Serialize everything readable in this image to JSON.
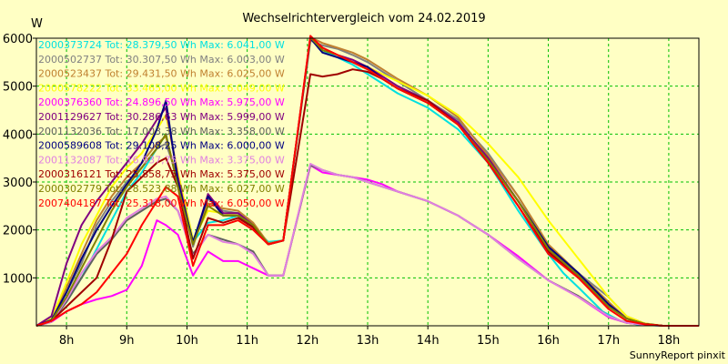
{
  "chart_data": {
    "type": "line",
    "title": "Wechselrichtervergleich vom 24.02.2019",
    "ylabel": "W",
    "xlabel": "",
    "footer": "SunnyReport pinxit",
    "xlim": [
      7.5,
      18.5
    ],
    "ylim": [
      0,
      6000
    ],
    "xticks": [
      8,
      9,
      10,
      11,
      12,
      13,
      14,
      15,
      16,
      17,
      18
    ],
    "xtick_labels": [
      "8h",
      "9h",
      "10h",
      "11h",
      "12h",
      "13h",
      "14h",
      "15h",
      "16h",
      "17h",
      "18h"
    ],
    "yticks": [
      1000,
      2000,
      3000,
      4000,
      5000,
      6000
    ],
    "ytick_labels": [
      "1000",
      "2000",
      "3000",
      "4000",
      "5000",
      "6000"
    ],
    "grid": true,
    "legend_position": "top-left",
    "series": [
      {
        "name": "2000373724",
        "legend": "2000373724 Tot: 28.379,50 Wh Max: 6.041,00 W",
        "color": "#00e0e0",
        "x": [
          7.5,
          7.75,
          8,
          8.25,
          8.5,
          8.75,
          9,
          9.25,
          9.5,
          9.65,
          9.85,
          10.1,
          10.35,
          10.6,
          10.85,
          11.1,
          11.35,
          11.6,
          12.05,
          12.25,
          12.5,
          12.75,
          13,
          13.25,
          13.5,
          14,
          14.5,
          15,
          15.5,
          16,
          16.25,
          16.5,
          16.9,
          17.2,
          17.5,
          17.9,
          18.5
        ],
        "y": [
          0,
          100,
          500,
          1000,
          1600,
          2200,
          2800,
          3200,
          3700,
          4000,
          2900,
          1750,
          2150,
          2200,
          2300,
          2050,
          1750,
          1780,
          5980,
          5750,
          5600,
          5450,
          5250,
          5050,
          4850,
          4550,
          4100,
          3400,
          2400,
          1500,
          1100,
          800,
          300,
          100,
          20,
          0,
          0
        ]
      },
      {
        "name": "2000502737",
        "legend": "2000502737 Tot: 30.307,50 Wh Max: 6.003,00 W",
        "color": "#808080",
        "x": [
          7.5,
          7.75,
          8,
          8.25,
          8.5,
          8.75,
          9,
          9.25,
          9.5,
          9.65,
          9.85,
          10.1,
          10.35,
          10.6,
          10.85,
          11.1,
          11.35,
          11.6,
          12.05,
          12.25,
          12.5,
          12.75,
          13,
          13.25,
          13.5,
          14,
          14.5,
          15,
          15.5,
          16,
          16.5,
          17,
          17.3,
          17.6,
          17.9,
          18.5
        ],
        "y": [
          0,
          100,
          700,
          1300,
          2100,
          2600,
          3000,
          3300,
          3700,
          3800,
          3100,
          1650,
          2650,
          2400,
          2350,
          2100,
          1700,
          1780,
          5950,
          5850,
          5780,
          5650,
          5500,
          5300,
          5100,
          4700,
          4300,
          3600,
          2700,
          1650,
          1100,
          600,
          200,
          50,
          0,
          0
        ]
      },
      {
        "name": "2000523437",
        "legend": "2000523437 Tot: 29.431,50 Wh Max: 6.025,00 W",
        "color": "#c08030",
        "x": [
          7.5,
          7.75,
          8,
          8.25,
          8.5,
          8.75,
          9,
          9.25,
          9.5,
          9.65,
          9.85,
          10.1,
          10.35,
          10.6,
          10.85,
          11.1,
          11.35,
          11.6,
          12.05,
          12.25,
          12.5,
          12.75,
          13,
          13.25,
          13.5,
          14,
          14.5,
          15,
          15.5,
          16,
          16.5,
          17,
          17.3,
          17.6,
          17.9,
          18.5
        ],
        "y": [
          0,
          120,
          800,
          1500,
          2200,
          2700,
          3100,
          3400,
          3800,
          3950,
          3000,
          1700,
          2550,
          2450,
          2400,
          2150,
          1720,
          1780,
          6020,
          5900,
          5800,
          5700,
          5550,
          5350,
          5150,
          4800,
          4350,
          3550,
          2700,
          1700,
          1100,
          500,
          150,
          30,
          0,
          0
        ]
      },
      {
        "name": "2000578222",
        "legend": "2000578222 Tot: 33.465,00 Wh Max: 6.049,00 W",
        "color": "#ffff00",
        "x": [
          7.5,
          7.75,
          8,
          8.25,
          8.5,
          8.75,
          9,
          9.25,
          9.5,
          9.65,
          9.85,
          10.1,
          10.35,
          10.6,
          10.85,
          11.1,
          11.35,
          11.6,
          12.05,
          12.25,
          12.5,
          12.75,
          13,
          13.25,
          13.5,
          14,
          14.5,
          15,
          15.5,
          16,
          16.5,
          17,
          17.3,
          17.6,
          17.9,
          18.5
        ],
        "y": [
          0,
          150,
          900,
          1700,
          2300,
          2900,
          3300,
          3600,
          4100,
          4400,
          3200,
          1800,
          2400,
          2350,
          2300,
          2100,
          1700,
          1780,
          6000,
          5800,
          5650,
          5500,
          5400,
          5250,
          5100,
          4800,
          4400,
          3800,
          3100,
          2200,
          1400,
          600,
          200,
          50,
          0,
          0
        ]
      },
      {
        "name": "2000376360",
        "legend": "2000376360 Tot: 24.896,50 Wh Max: 5.975,00 W",
        "color": "#ff00ff",
        "x": [
          7.5,
          7.75,
          8,
          8.25,
          8.5,
          8.75,
          9,
          9.25,
          9.5,
          9.65,
          9.85,
          10.1,
          10.35,
          10.6,
          10.85,
          11.1,
          11.35,
          11.6,
          12.05,
          12.25,
          12.5,
          12.75,
          13,
          13.25,
          13.5,
          14,
          14.5,
          15,
          15.5,
          16,
          16.5,
          17,
          17.3,
          17.6,
          17.9,
          18.5
        ],
        "y": [
          0,
          80,
          300,
          450,
          550,
          620,
          750,
          1250,
          2200,
          2100,
          1900,
          1050,
          1550,
          1350,
          1350,
          1200,
          1050,
          1050,
          3350,
          3200,
          3150,
          3100,
          3050,
          2950,
          2800,
          2600,
          2300,
          1900,
          1450,
          950,
          600,
          180,
          60,
          20,
          0,
          0
        ]
      },
      {
        "name": "2001129627",
        "legend": "2001129627 Tot: 30.286,63 Wh Max: 5.999,00 W",
        "color": "#800080",
        "x": [
          7.5,
          7.75,
          8,
          8.25,
          8.5,
          8.75,
          9,
          9.25,
          9.5,
          9.65,
          9.85,
          10.1,
          10.35,
          10.6,
          10.85,
          11.1,
          11.35,
          11.6,
          12.05,
          12.25,
          12.5,
          12.75,
          13,
          13.25,
          13.5,
          14,
          14.5,
          15,
          15.5,
          16,
          16.5,
          17,
          17.3,
          17.6,
          17.9,
          18.5
        ],
        "y": [
          0,
          200,
          1300,
          2100,
          2600,
          3000,
          3400,
          3800,
          4300,
          4550,
          3100,
          1700,
          2750,
          2350,
          2350,
          2100,
          1700,
          1780,
          6000,
          5800,
          5650,
          5550,
          5400,
          5200,
          5000,
          4700,
          4250,
          3500,
          2600,
          1600,
          1050,
          450,
          150,
          40,
          0,
          0
        ]
      },
      {
        "name": "2001132036",
        "legend": "2001132036 Tot: 17.003,38 Wh Max: 3.358,00 W",
        "color": "#606060",
        "x": [
          7.5,
          7.75,
          8,
          8.25,
          8.5,
          8.75,
          9,
          9.25,
          9.5,
          9.65,
          9.85,
          10.1,
          10.35,
          10.6,
          10.85,
          11.1,
          11.35,
          11.6,
          12.05,
          12.25,
          12.5,
          12.75,
          13,
          13.25,
          13.5,
          14,
          14.5,
          15,
          15.5,
          16,
          16.5,
          17,
          17.3,
          17.6,
          17.9,
          18.5
        ],
        "y": [
          0,
          80,
          500,
          1000,
          1500,
          1800,
          2200,
          2400,
          2600,
          2650,
          2400,
          1500,
          1900,
          1800,
          1700,
          1550,
          1050,
          1050,
          3350,
          3250,
          3150,
          3100,
          3000,
          2900,
          2800,
          2600,
          2300,
          1900,
          1400,
          950,
          620,
          200,
          60,
          20,
          0,
          0
        ]
      },
      {
        "name": "2000589608",
        "legend": "2000589608 Tot: 29.108,25 Wh Max: 6.000,00 W",
        "color": "#000080",
        "x": [
          7.5,
          7.75,
          8,
          8.25,
          8.5,
          8.75,
          9,
          9.25,
          9.5,
          9.65,
          9.85,
          10.1,
          10.35,
          10.6,
          10.85,
          11.1,
          11.35,
          11.6,
          12.05,
          12.25,
          12.5,
          12.75,
          13,
          13.25,
          13.5,
          14,
          14.5,
          15,
          15.5,
          16,
          16.5,
          17,
          17.3,
          17.6,
          17.9,
          18.5
        ],
        "y": [
          0,
          120,
          700,
          1400,
          2000,
          2500,
          2950,
          3400,
          4100,
          4700,
          3000,
          1750,
          2700,
          2300,
          2300,
          2050,
          1700,
          1780,
          6000,
          5700,
          5600,
          5500,
          5400,
          5150,
          4950,
          4650,
          4200,
          3450,
          2600,
          1650,
          1100,
          450,
          150,
          40,
          0,
          0
        ]
      },
      {
        "name": "2001132087",
        "legend": "2001132087 Tot: 16.937,75 Wh Max: 3.375,00 W",
        "color": "#e080e0",
        "x": [
          7.5,
          7.75,
          8,
          8.25,
          8.5,
          8.75,
          9,
          9.25,
          9.5,
          9.65,
          9.85,
          10.1,
          10.35,
          10.6,
          10.85,
          11.1,
          11.35,
          11.6,
          12.05,
          12.25,
          12.5,
          12.75,
          13,
          13.25,
          13.5,
          14,
          14.5,
          15,
          15.5,
          16,
          16.5,
          17,
          17.3,
          17.6,
          17.9,
          18.5
        ],
        "y": [
          0,
          80,
          550,
          1100,
          1550,
          1850,
          2250,
          2450,
          2650,
          2700,
          2400,
          1450,
          1900,
          1750,
          1700,
          1500,
          1050,
          1050,
          3380,
          3250,
          3150,
          3100,
          3000,
          2900,
          2800,
          2600,
          2300,
          1900,
          1400,
          950,
          600,
          200,
          60,
          20,
          0,
          0
        ]
      },
      {
        "name": "2000316121",
        "legend": "2000316121 Tot: 25.858,75 Wh Max: 5.375,00 W",
        "color": "#a00000",
        "x": [
          7.5,
          7.75,
          8,
          8.25,
          8.5,
          8.75,
          9,
          9.25,
          9.5,
          9.65,
          9.85,
          10.1,
          10.35,
          10.6,
          10.85,
          11.1,
          11.35,
          11.6,
          12.05,
          12.25,
          12.5,
          12.75,
          13,
          13.25,
          13.5,
          14,
          14.5,
          15,
          15.5,
          16,
          16.5,
          17,
          17.3,
          17.6,
          17.9,
          18.5
        ],
        "y": [
          0,
          100,
          400,
          700,
          1000,
          1800,
          2800,
          3100,
          3400,
          3500,
          2900,
          1400,
          2250,
          2150,
          2250,
          2050,
          1700,
          1780,
          5250,
          5200,
          5250,
          5350,
          5300,
          5150,
          4950,
          4700,
          4200,
          3400,
          2500,
          1550,
          1000,
          400,
          150,
          40,
          0,
          0
        ]
      },
      {
        "name": "2000302779",
        "legend": "2000302779 Tot: 28.523,88 Wh Max: 6.027,00 W",
        "color": "#808000",
        "x": [
          7.5,
          7.75,
          8,
          8.25,
          8.5,
          8.75,
          9,
          9.25,
          9.5,
          9.65,
          9.85,
          10.1,
          10.35,
          10.6,
          10.85,
          11.1,
          11.35,
          11.6,
          12.05,
          12.25,
          12.5,
          12.75,
          13,
          13.25,
          13.5,
          14,
          14.5,
          15,
          15.5,
          16,
          16.5,
          17,
          17.3,
          17.6,
          17.9,
          18.5
        ],
        "y": [
          0,
          100,
          600,
          1200,
          1800,
          2400,
          2900,
          3300,
          3700,
          4000,
          2900,
          1700,
          2500,
          2300,
          2300,
          2100,
          1700,
          1780,
          6020,
          5750,
          5650,
          5500,
          5350,
          5150,
          4950,
          4650,
          4200,
          3450,
          2600,
          1600,
          1050,
          400,
          150,
          40,
          0,
          0
        ]
      },
      {
        "name": "2007404187",
        "legend": "2007404187 Tot: 25.318,00 Wh Max: 6.050,00 W",
        "color": "#ff0000",
        "x": [
          7.5,
          7.75,
          8,
          8.25,
          8.5,
          8.75,
          9,
          9.25,
          9.5,
          9.65,
          9.85,
          10.1,
          10.35,
          10.6,
          10.85,
          11.1,
          11.35,
          11.6,
          12.05,
          12.25,
          12.5,
          12.75,
          13,
          13.25,
          13.5,
          14,
          14.5,
          15,
          15.5,
          16,
          16.5,
          17,
          17.3,
          17.6,
          17.9,
          18.5
        ],
        "y": [
          0,
          100,
          300,
          450,
          700,
          1100,
          1500,
          2100,
          2600,
          2900,
          2700,
          1250,
          2100,
          2100,
          2200,
          2000,
          1700,
          1780,
          6050,
          5800,
          5650,
          5500,
          5350,
          5150,
          4950,
          4650,
          4200,
          3400,
          2500,
          1500,
          1000,
          350,
          100,
          30,
          0,
          0
        ]
      }
    ]
  }
}
